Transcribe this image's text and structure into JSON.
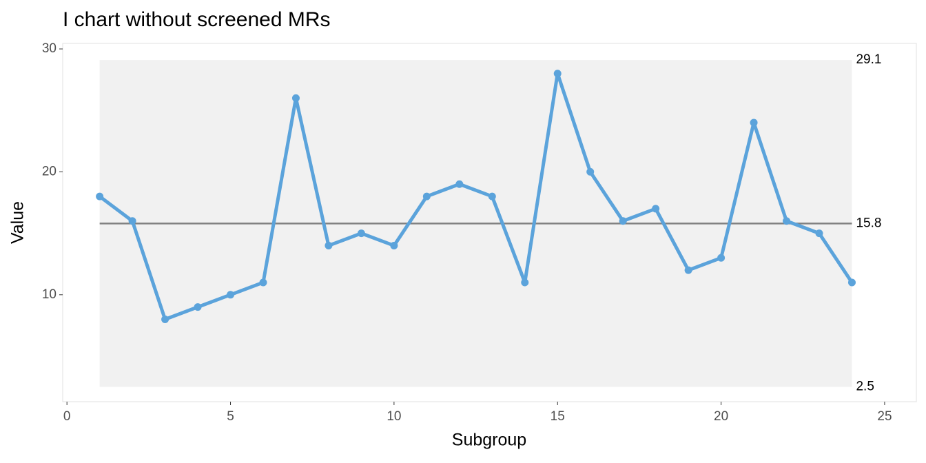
{
  "chart_data": {
    "type": "line",
    "title": "I chart without screened MRs",
    "x_label": "Subgroup",
    "y_label": "Value",
    "x": [
      1,
      2,
      3,
      4,
      5,
      6,
      7,
      8,
      9,
      10,
      11,
      12,
      13,
      14,
      15,
      16,
      17,
      18,
      19,
      20,
      21,
      22,
      23,
      24
    ],
    "series": [
      {
        "color": "#5ba3db",
        "values": [
          18,
          16,
          8,
          9,
          10,
          11,
          26,
          14,
          15,
          14,
          18,
          19,
          18,
          11,
          28,
          20,
          16,
          17,
          12,
          13,
          24,
          16,
          15,
          11
        ]
      }
    ],
    "center": 15.8,
    "lcl": 2.5,
    "ucl": 29.1,
    "xlim": [
      -0.13,
      25.97
    ],
    "ylim": [
      1.3,
      30.45
    ],
    "xticks": [
      0,
      5,
      10,
      15,
      20,
      25
    ],
    "yticks": [
      10,
      20,
      30
    ]
  }
}
